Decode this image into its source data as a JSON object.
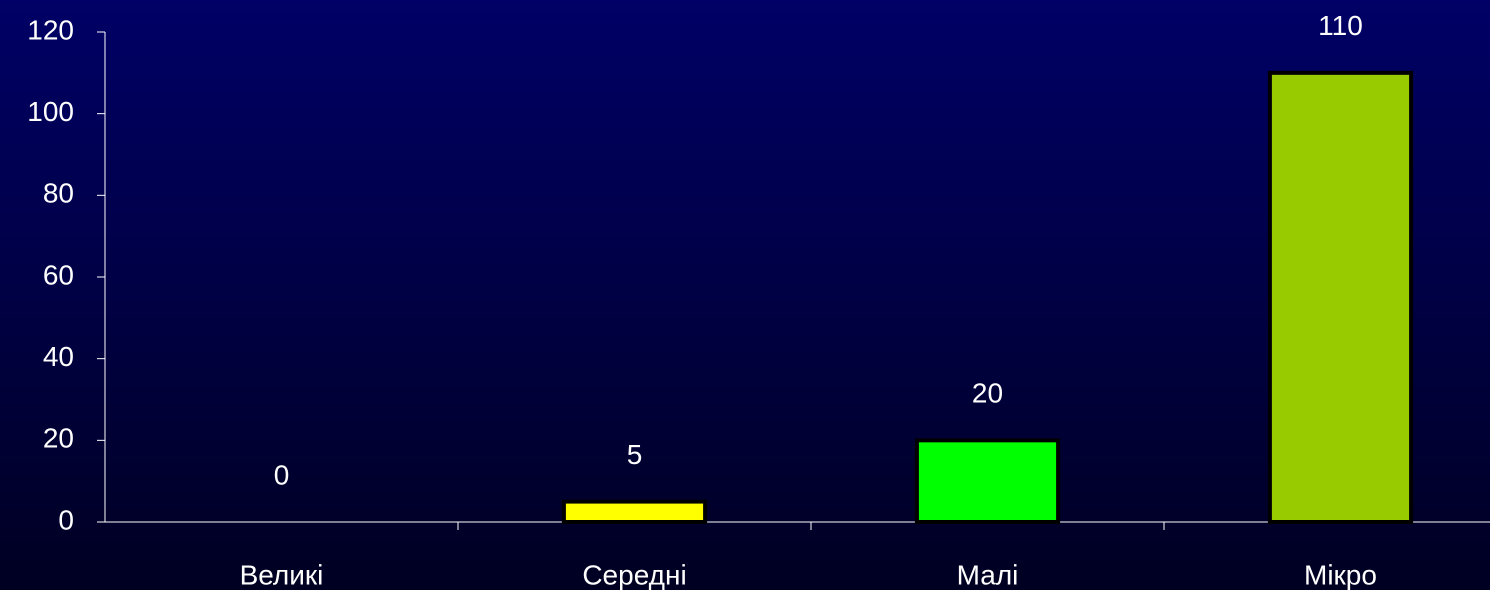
{
  "chart_data": {
    "type": "bar",
    "categories": [
      "Великі",
      "Середні",
      "Малі",
      "Мікро"
    ],
    "values": [
      0,
      5,
      20,
      110
    ],
    "colors": [
      null,
      "#ffff00",
      "#00ff00",
      "#99cc00"
    ],
    "ylim": [
      0,
      120
    ],
    "yticks": [
      0,
      20,
      40,
      60,
      80,
      100,
      120
    ]
  }
}
